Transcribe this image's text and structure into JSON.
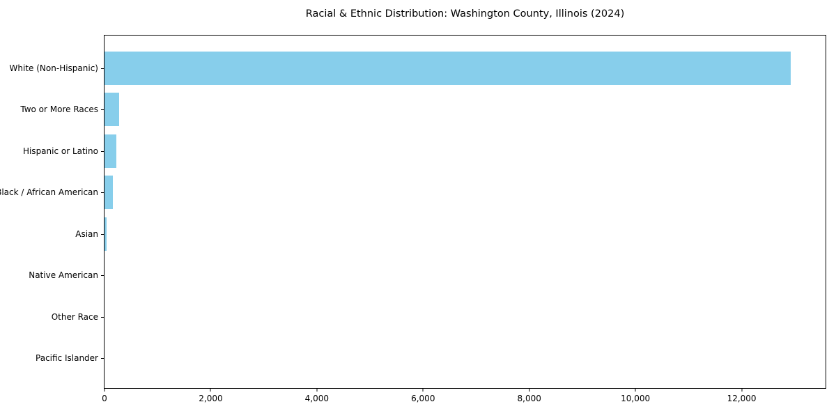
{
  "title": "Racial & Ethnic Distribution: Washington County, Illinois (2024)",
  "colors": {
    "bar": "#87CEEB",
    "axis": "#000000",
    "background": "#FFFFFF",
    "text": "#000000"
  },
  "chart_data": {
    "type": "bar",
    "orientation": "horizontal",
    "title": "Racial & Ethnic Distribution: Washington County, Illinois (2024)",
    "categories": [
      "White (Non-Hispanic)",
      "Two or More Races",
      "Hispanic or Latino",
      "Black / African American",
      "Asian",
      "Native American",
      "Other Race",
      "Pacific Islander"
    ],
    "values": [
      12930,
      280,
      225,
      160,
      40,
      12,
      7,
      3
    ],
    "xlabel": "",
    "ylabel": "",
    "xlim": [
      0,
      13580
    ],
    "x_ticks": [
      0,
      2000,
      4000,
      6000,
      8000,
      10000,
      12000
    ],
    "x_tick_labels": [
      "0",
      "2,000",
      "4,000",
      "6,000",
      "8,000",
      "10,000",
      "12,000"
    ],
    "grid": false,
    "legend": null,
    "bar_color": "#87CEEB",
    "category_order": "descending, largest at top"
  }
}
